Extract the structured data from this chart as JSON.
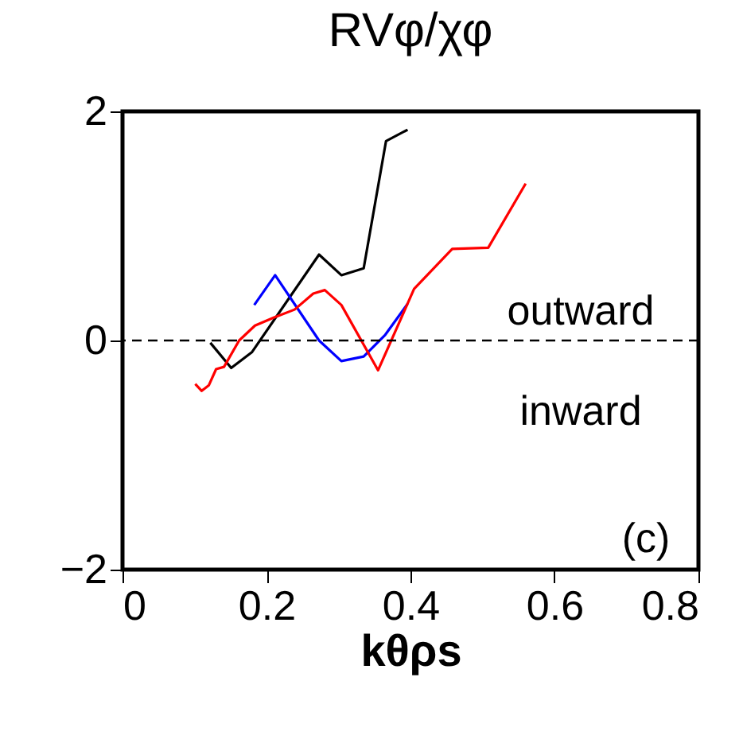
{
  "chart_data": {
    "type": "line",
    "title": "RVφ/χφ",
    "xlabel": "kθρs",
    "xlim": [
      0,
      0.8
    ],
    "xticks": [
      0,
      0.2,
      0.4,
      0.6,
      0.8
    ],
    "ylim": [
      -2,
      2
    ],
    "yticks": [
      -2,
      0,
      2
    ],
    "grid": false,
    "marker": "none",
    "line_style": "solid",
    "series": [
      {
        "color": "#000000",
        "x": [
          0.122,
          0.151,
          0.18,
          0.273,
          0.304,
          0.335,
          0.366,
          0.396
        ],
        "values": [
          -0.02,
          -0.24,
          -0.1,
          0.75,
          0.57,
          0.63,
          1.74,
          1.84
        ]
      },
      {
        "color": "#0000ff",
        "x": [
          0.183,
          0.212,
          0.273,
          0.304,
          0.335,
          0.365,
          0.396
        ],
        "values": [
          0.31,
          0.57,
          0.0,
          -0.18,
          -0.14,
          0.05,
          0.32
        ]
      },
      {
        "color": "#ff0000",
        "x": [
          0.101,
          0.11,
          0.12,
          0.13,
          0.141,
          0.162,
          0.184,
          0.21,
          0.239,
          0.265,
          0.281,
          0.304,
          0.355,
          0.405,
          0.458,
          0.508,
          0.56
        ],
        "values": [
          -0.38,
          -0.44,
          -0.39,
          -0.25,
          -0.23,
          0.0,
          0.13,
          0.2,
          0.27,
          0.41,
          0.44,
          0.31,
          -0.26,
          0.45,
          0.8,
          0.81,
          1.37
        ]
      }
    ],
    "ref_lines": [
      {
        "axis": "y",
        "value": 0,
        "color": "#000000",
        "line_style": "dashed"
      }
    ],
    "annotations": [
      "outward",
      "inward",
      "(c)"
    ]
  }
}
